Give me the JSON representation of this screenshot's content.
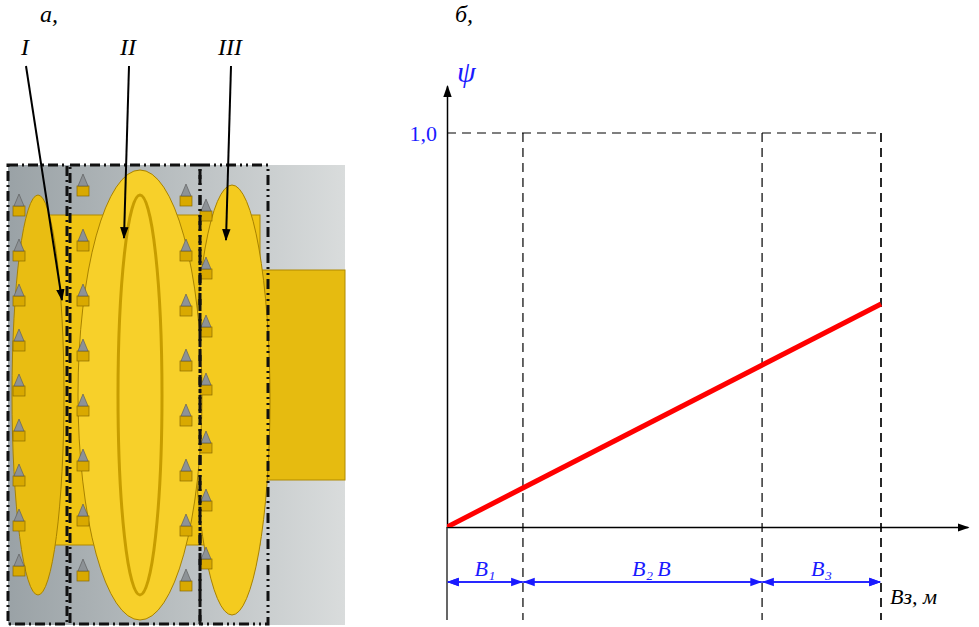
{
  "photo": {
    "panel_label": "а,",
    "labels": [
      "I",
      "II",
      "III"
    ]
  },
  "chart_data": {
    "type": "line",
    "panel_label": "б,",
    "y_label": "ψ",
    "x_label": "Bз, м",
    "x": [
      0,
      1.0
    ],
    "values": [
      0,
      0.566
    ],
    "color": "#ff0000",
    "xlim": [
      0,
      1.2
    ],
    "xticks": [],
    "ylim": [
      0,
      1.12
    ],
    "yticks": [
      {
        "value": 1,
        "label": "1,0"
      }
    ],
    "grid": true,
    "tick_labels": "y",
    "dimensions": [
      {
        "label": "B₁",
        "from": 0,
        "to": 0.175
      },
      {
        "label": "B₂",
        "from": 0.175,
        "to": 0.726
      },
      {
        "label": "B₃",
        "from": 0.726,
        "to": 1.0
      },
      {
        "label": "B",
        "from": 0,
        "to": 1.0
      }
    ]
  }
}
